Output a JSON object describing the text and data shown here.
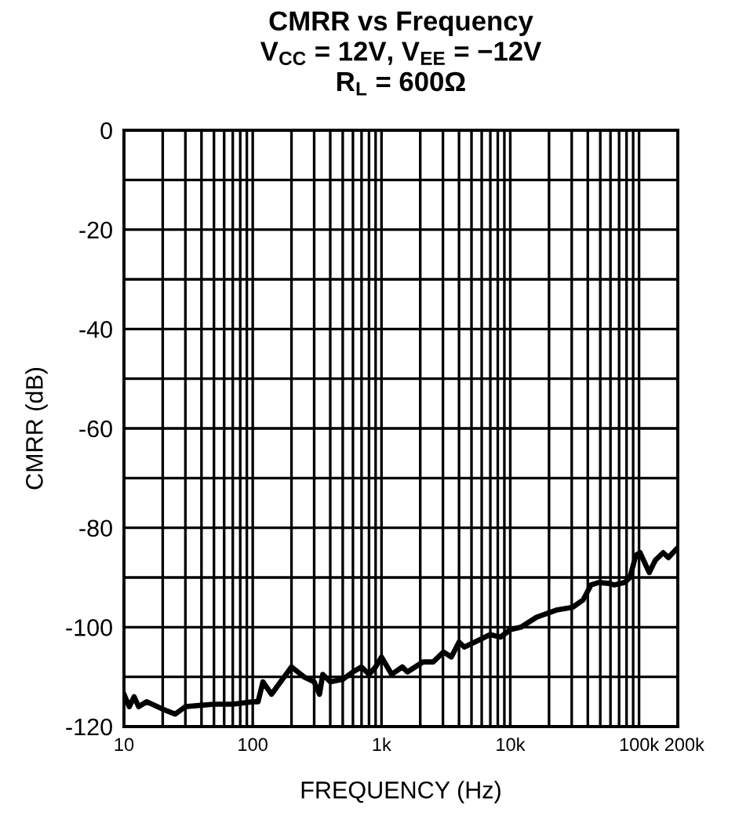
{
  "chart_data": {
    "type": "line",
    "title": "CMRR vs Frequency\nV$_{CC}$ = 12V, V$_{EE}$ = −12V\nR$_{L}$ = 600Ω",
    "xlabel": "FREQUENCY (Hz)",
    "ylabel": "CMRR (dB)",
    "log": "x",
    "grid": true,
    "legend": false,
    "marker": "none",
    "line_style": "solid",
    "xlim": [
      10,
      200000
    ],
    "xticks": [
      10,
      {
        "value": 20,
        "label": null
      },
      {
        "value": 30,
        "label": null
      },
      {
        "value": 40,
        "label": null
      },
      {
        "value": 50,
        "label": null
      },
      {
        "value": 60,
        "label": null
      },
      {
        "value": 70,
        "label": null
      },
      {
        "value": 80,
        "label": null
      },
      {
        "value": 90,
        "label": null
      },
      100,
      {
        "value": 200,
        "label": null
      },
      {
        "value": 300,
        "label": null
      },
      {
        "value": 400,
        "label": null
      },
      {
        "value": 500,
        "label": null
      },
      {
        "value": 600,
        "label": null
      },
      {
        "value": 700,
        "label": null
      },
      {
        "value": 800,
        "label": null
      },
      {
        "value": 900,
        "label": null
      },
      {
        "value": 1000,
        "label": "1k"
      },
      {
        "value": 2000,
        "label": null
      },
      {
        "value": 3000,
        "label": null
      },
      {
        "value": 4000,
        "label": null
      },
      {
        "value": 5000,
        "label": null
      },
      {
        "value": 6000,
        "label": null
      },
      {
        "value": 7000,
        "label": null
      },
      {
        "value": 8000,
        "label": null
      },
      {
        "value": 9000,
        "label": null
      },
      {
        "value": 10000,
        "label": "10k"
      },
      {
        "value": 20000,
        "label": null
      },
      {
        "value": 30000,
        "label": null
      },
      {
        "value": 40000,
        "label": null
      },
      {
        "value": 50000,
        "label": null
      },
      {
        "value": 60000,
        "label": null
      },
      {
        "value": 70000,
        "label": null
      },
      {
        "value": 80000,
        "label": null
      },
      {
        "value": 90000,
        "label": null
      },
      {
        "value": 100000,
        "label": "100k"
      },
      {
        "value": 200000,
        "label": "200k"
      }
    ],
    "ylim": [
      -120,
      0
    ],
    "yticks": [
      -120,
      {
        "value": -110,
        "label": null
      },
      -100,
      {
        "value": -90,
        "label": null
      },
      -80,
      {
        "value": -70,
        "label": null
      },
      -60,
      {
        "value": -50,
        "label": null
      },
      -40,
      {
        "value": -30,
        "label": null
      },
      -20,
      {
        "value": -10,
        "label": null
      },
      0
    ],
    "series": [
      {
        "color": "#000000",
        "x": [
          10,
          11,
          12,
          13,
          15,
          20,
          25,
          30,
          50,
          70,
          100,
          110,
          120,
          140,
          200,
          250,
          300,
          330,
          350,
          400,
          500,
          600,
          700,
          800,
          900,
          1000,
          1200,
          1450,
          1590,
          2100,
          2520,
          3030,
          3490,
          4000,
          4390,
          5800,
          6970,
          8400,
          10000,
          12100,
          16000,
          23200,
          30500,
          36800,
          42400,
          48700,
          58700,
          64300,
          77400,
          84900,
          94600,
          101800,
          120000,
          134000,
          154000,
          169000,
          200000
        ],
        "values": [
          -113.5,
          -116,
          -114,
          -116,
          -115,
          -116.5,
          -117.5,
          -116,
          -115.5,
          -115.5,
          -115,
          -115,
          -111,
          -113.5,
          -108,
          -110,
          -111,
          -113.5,
          -109.5,
          -111,
          -110.5,
          -109,
          -108,
          -109.5,
          -108,
          -106,
          -109.5,
          -108,
          -109,
          -107,
          -107,
          -105,
          -106,
          -103,
          -104,
          -102.5,
          -101.5,
          -102,
          -100.5,
          -100,
          -98,
          -96.5,
          -96,
          -94.5,
          -91.5,
          -91,
          -91.2,
          -91.5,
          -91,
          -90,
          -85.5,
          -85,
          -89,
          -86.5,
          -85,
          -86,
          -84
        ]
      }
    ]
  }
}
